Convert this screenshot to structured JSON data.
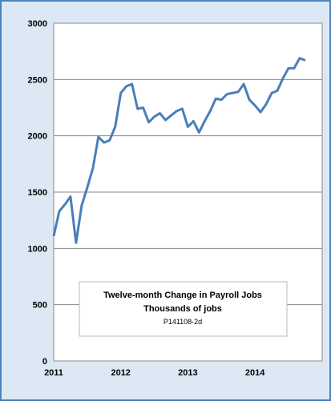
{
  "chart_data": {
    "type": "line",
    "title": "Twelve-month Change in Payroll Jobs",
    "subtitle": "Thousands of jobs",
    "annotation": "P141108-2d",
    "categories": [
      "2011",
      null,
      null,
      null,
      null,
      null,
      null,
      null,
      null,
      null,
      null,
      null,
      "2012",
      null,
      null,
      null,
      null,
      null,
      null,
      null,
      null,
      null,
      null,
      null,
      "2013",
      null,
      null,
      null,
      null,
      null,
      null,
      null,
      null,
      null,
      null,
      null,
      "2014",
      null,
      null,
      null,
      null,
      null,
      null,
      null,
      null,
      null
    ],
    "series": [
      {
        "name": "Payroll jobs",
        "color": "#4a7ebb",
        "values": [
          1110,
          1330,
          1390,
          1460,
          1050,
          1380,
          1540,
          1710,
          1990,
          1940,
          1960,
          2080,
          2380,
          2440,
          2460,
          2240,
          2250,
          2120,
          2170,
          2200,
          2140,
          2180,
          2220,
          2240,
          2080,
          2130,
          2030,
          2130,
          2220,
          2330,
          2320,
          2370,
          2380,
          2390,
          2460,
          2320,
          2270,
          2210,
          2280,
          2380,
          2400,
          2510,
          2600,
          2600,
          2690,
          2670
        ]
      }
    ],
    "ylim": [
      0,
      3000
    ],
    "yticks": [
      0,
      500,
      1000,
      1500,
      2000,
      2500,
      3000
    ],
    "grid": true
  }
}
